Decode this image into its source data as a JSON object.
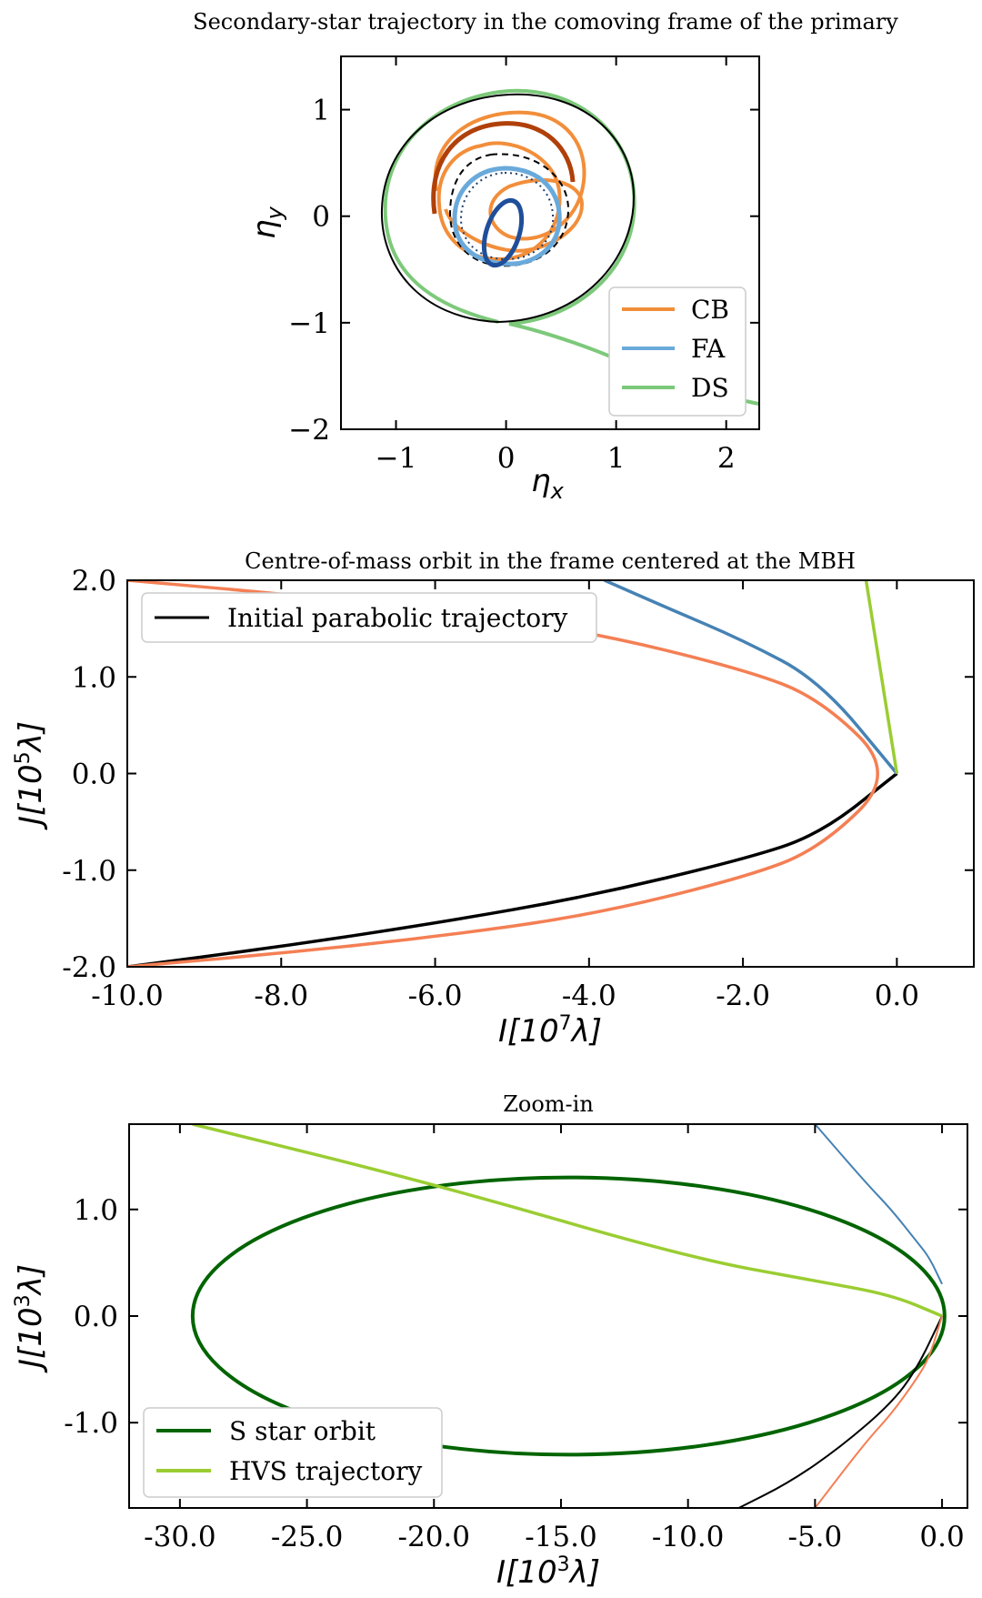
{
  "chart_data": [
    {
      "type": "line",
      "title": "Secondary-star trajectory in the comoving frame of the primary",
      "xlabel": "η_x",
      "ylabel": "η_y",
      "xlim": [
        -1.5,
        2.3
      ],
      "ylim": [
        -2.0,
        1.5
      ],
      "xticks": [
        -1,
        0,
        1,
        2
      ],
      "xtick_labels": [
        "−1",
        "0",
        "1",
        "2"
      ],
      "yticks": [
        1,
        0,
        -1,
        -2
      ],
      "ytick_labels": [
        "1",
        "0",
        "−1",
        "−2"
      ],
      "legend_position": "lower-right",
      "series": [
        {
          "name": "CB",
          "color": "#f28e3a",
          "description": "loops"
        },
        {
          "name": "FA",
          "color": "#6aaadb",
          "description": "loops"
        },
        {
          "name": "DS",
          "color": "#7cc97a",
          "description": "escaping"
        }
      ]
    },
    {
      "type": "line",
      "title": "Centre-of-mass orbit in the frame centered at the MBH",
      "xlabel": "I[10^7 λ]",
      "ylabel": "J[10^5 λ]",
      "xlim": [
        -10.0,
        1.0
      ],
      "ylim": [
        -2.0,
        2.0
      ],
      "xticks": [
        -10,
        -8,
        -6,
        -4,
        -2,
        0
      ],
      "xtick_labels": [
        "-10.0",
        "-8.0",
        "-6.0",
        "-4.0",
        "-2.0",
        "0.0"
      ],
      "yticks": [
        2,
        1,
        0,
        -1,
        -2
      ],
      "ytick_labels": [
        "2.0",
        "1.0",
        "0.0",
        "-1.0",
        "-2.0"
      ],
      "legend_position": "top-left",
      "series": [
        {
          "name": "Initial parabolic trajectory",
          "color": "#000000",
          "x": [
            -10.0,
            -8.0,
            -6.0,
            -4.0,
            -2.0,
            -1.0,
            0.0
          ],
          "y": [
            -2.0,
            -1.79,
            -1.55,
            -1.27,
            -0.89,
            -0.63,
            0.0
          ]
        },
        {
          "name": "",
          "color": "#f47f54",
          "x": [
            -10.0,
            -8.0,
            -6.0,
            -4.0,
            -2.0,
            -1.0,
            0.0,
            -1.0,
            -2.0,
            -4.0,
            -6.0,
            -8.0,
            -10.0
          ],
          "y": [
            -2.0,
            -1.86,
            -1.69,
            -1.47,
            -1.08,
            -0.78,
            0.0,
            0.78,
            1.08,
            1.47,
            1.69,
            1.86,
            2.0
          ]
        },
        {
          "name": "",
          "color": "#4682b4",
          "x": [
            0.0,
            -1.0,
            -2.0,
            -3.0,
            -3.8
          ],
          "y": [
            0.0,
            0.96,
            1.38,
            1.72,
            2.0
          ]
        },
        {
          "name": "",
          "color": "#9acd32",
          "x": [
            0.0,
            -0.4
          ],
          "y": [
            0.0,
            2.0
          ]
        }
      ]
    },
    {
      "type": "line",
      "title": "Zoom-in",
      "xlabel": "I[10^3 λ]",
      "ylabel": "J[10^3 λ]",
      "xlim": [
        -32.0,
        1.0
      ],
      "ylim": [
        -1.8,
        1.8
      ],
      "xticks": [
        -30,
        -25,
        -20,
        -15,
        -10,
        -5,
        0
      ],
      "xtick_labels": [
        "-30.0",
        "-25.0",
        "-20.0",
        "-15.0",
        "-10.0",
        "-5.0",
        "0.0"
      ],
      "yticks": [
        1,
        0,
        -1
      ],
      "ytick_labels": [
        "1.0",
        "0.0",
        "-1.0"
      ],
      "legend_position": "lower-left",
      "series": [
        {
          "name": "S star orbit",
          "color": "#006400",
          "type": "ellipse",
          "center": [
            -14.7,
            0.0
          ],
          "semi_axes": [
            14.8,
            1.3
          ]
        },
        {
          "name": "HVS trajectory",
          "color": "#9acd32",
          "x": [
            0.0,
            -2.0,
            -5.0,
            -10.0,
            -20.0,
            -29.5
          ],
          "y": [
            0.0,
            0.2,
            0.33,
            0.55,
            1.24,
            1.8
          ]
        },
        {
          "name": "",
          "color": "#000000",
          "x": [
            0.0,
            -1.0,
            -2.0,
            -4.0,
            -6.0,
            -8.0
          ],
          "y": [
            0.0,
            -0.5,
            -0.82,
            -1.23,
            -1.56,
            -1.8
          ]
        },
        {
          "name": "",
          "color": "#f47f54",
          "x": [
            0.0,
            -0.5,
            -1.0,
            -2.0,
            -3.0,
            -5.0
          ],
          "y": [
            0.0,
            -0.39,
            -0.59,
            -0.92,
            -1.18,
            -1.8
          ]
        },
        {
          "name": "",
          "color": "#4682b4",
          "x": [
            0.0,
            -0.5,
            -1.0,
            -2.0,
            -3.0,
            -5.0
          ],
          "y": [
            0.3,
            0.55,
            0.7,
            1.0,
            1.25,
            1.8
          ]
        }
      ]
    }
  ]
}
